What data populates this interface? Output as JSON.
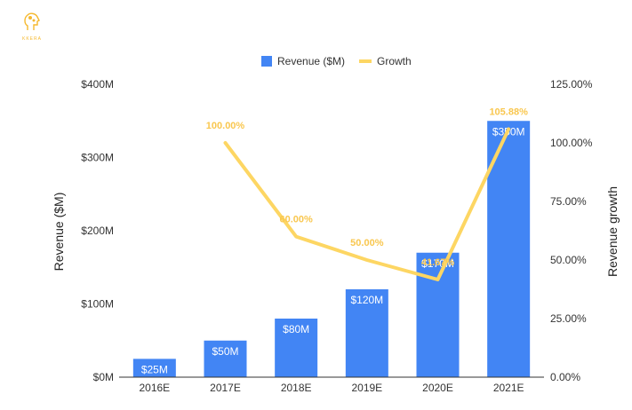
{
  "logo": {
    "text": "KKERA",
    "icon": "head-gears-icon",
    "color": "#f5b82e"
  },
  "chart_data": {
    "type": "bar",
    "categories": [
      "2016E",
      "2017E",
      "2018E",
      "2019E",
      "2020E",
      "2021E"
    ],
    "series": [
      {
        "name": "Revenue ($M)",
        "type": "bar",
        "axis": "left",
        "color": "#4285f4",
        "values": [
          25,
          50,
          80,
          120,
          170,
          350
        ],
        "labels": [
          "$25M",
          "$50M",
          "$80M",
          "$120M",
          "$170M",
          "$350M"
        ]
      },
      {
        "name": "Growth",
        "type": "line",
        "axis": "right",
        "color": "#fdd663",
        "label_color": "#f9c74f",
        "values": [
          null,
          100.0,
          60.0,
          50.0,
          41.67,
          105.88
        ],
        "labels": [
          null,
          "100.00%",
          "60.00%",
          "50.00%",
          "41.67%",
          "105.88%"
        ]
      }
    ],
    "ylabel": "Revenue ($M)",
    "ylabel_right": "Revenue growth",
    "ylim": [
      0,
      400
    ],
    "ylim_right": [
      0,
      125
    ],
    "y_ticks": [
      0,
      100,
      200,
      300,
      400
    ],
    "y_tick_labels": [
      "$0M",
      "$100M",
      "$200M",
      "$300M",
      "$400M"
    ],
    "y_right_ticks": [
      0,
      25,
      50,
      75,
      100,
      125
    ],
    "y_right_tick_labels": [
      "0.00%",
      "25.00%",
      "50.00%",
      "75.00%",
      "100.00%",
      "125.00%"
    ],
    "legend_position": "top",
    "grid": false
  }
}
